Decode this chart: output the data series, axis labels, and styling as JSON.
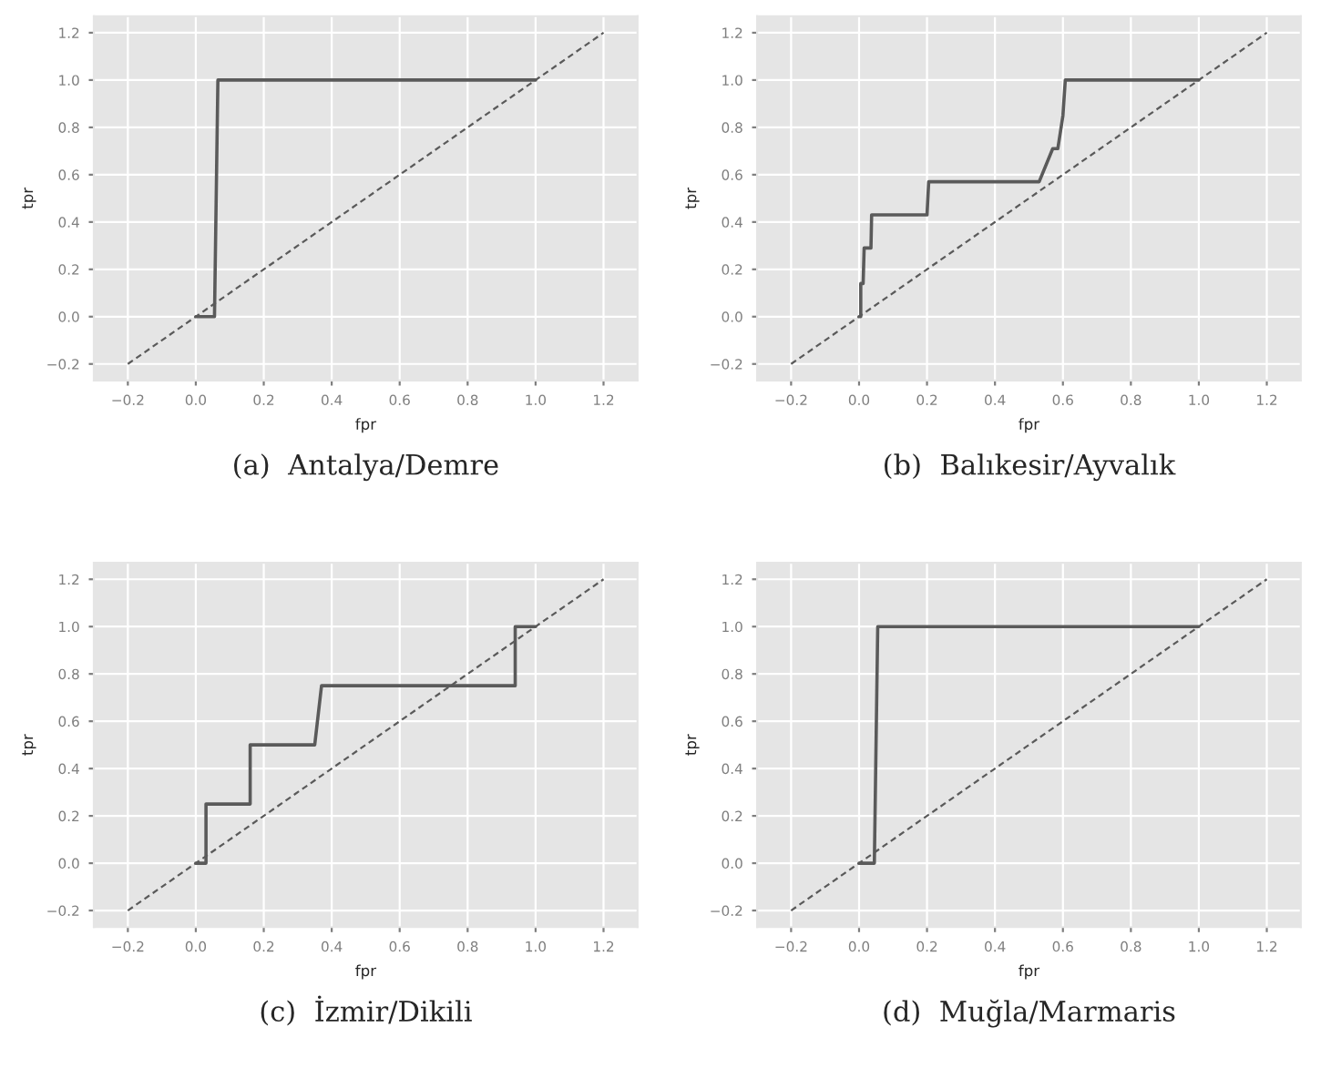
{
  "chart_data": [
    {
      "type": "line",
      "title": "(a)  Antalya/Demre",
      "xlabel": "fpr",
      "ylabel": "tpr",
      "xlim": [
        -0.3,
        1.3
      ],
      "ylim": [
        -0.27,
        1.27
      ],
      "xticks": [
        {
          "value": -0.2,
          "label": "−0.2"
        },
        {
          "value": 0,
          "label": "0.0"
        },
        {
          "value": 0.2,
          "label": "0.2"
        },
        {
          "value": 0.4,
          "label": "0.4"
        },
        {
          "value": 0.6,
          "label": "0.6"
        },
        {
          "value": 0.8,
          "label": "0.8"
        },
        {
          "value": 1,
          "label": "1.0"
        },
        {
          "value": 1.2,
          "label": "1.2"
        }
      ],
      "yticks": [
        {
          "value": -0.2,
          "label": "−0.2"
        },
        {
          "value": 0,
          "label": "0.0"
        },
        {
          "value": 0.2,
          "label": "0.2"
        },
        {
          "value": 0.4,
          "label": "0.4"
        },
        {
          "value": 0.6,
          "label": "0.6"
        },
        {
          "value": 0.8,
          "label": "0.8"
        },
        {
          "value": 1,
          "label": "1.0"
        },
        {
          "value": 1.2,
          "label": "1.2"
        }
      ],
      "grid": true,
      "legend": false,
      "series": [
        {
          "color": "#5a5a5a",
          "line_style": "solid",
          "x": [
            0,
            0.055,
            0.065,
            1.0
          ],
          "values": [
            0,
            0,
            1.0,
            1.0
          ]
        },
        {
          "color": "#5a5a5a",
          "line_style": "dashed",
          "x": [
            -0.2,
            1.2
          ],
          "values": [
            -0.2,
            1.2
          ]
        }
      ]
    },
    {
      "type": "line",
      "title": "(b)  Balıkesir/Ayvalık",
      "xlabel": "fpr",
      "ylabel": "tpr",
      "xlim": [
        -0.3,
        1.3
      ],
      "ylim": [
        -0.27,
        1.27
      ],
      "xticks": [
        {
          "value": -0.2,
          "label": "−0.2"
        },
        {
          "value": 0,
          "label": "0.0"
        },
        {
          "value": 0.2,
          "label": "0.2"
        },
        {
          "value": 0.4,
          "label": "0.4"
        },
        {
          "value": 0.6,
          "label": "0.6"
        },
        {
          "value": 0.8,
          "label": "0.8"
        },
        {
          "value": 1,
          "label": "1.0"
        },
        {
          "value": 1.2,
          "label": "1.2"
        }
      ],
      "yticks": [
        {
          "value": -0.2,
          "label": "−0.2"
        },
        {
          "value": 0,
          "label": "0.0"
        },
        {
          "value": 0.2,
          "label": "0.2"
        },
        {
          "value": 0.4,
          "label": "0.4"
        },
        {
          "value": 0.6,
          "label": "0.6"
        },
        {
          "value": 0.8,
          "label": "0.8"
        },
        {
          "value": 1,
          "label": "1.0"
        },
        {
          "value": 1.2,
          "label": "1.2"
        }
      ],
      "grid": true,
      "legend": false,
      "series": [
        {
          "color": "#5a5a5a",
          "line_style": "solid",
          "x": [
            0,
            0.005,
            0.005,
            0.012,
            0.015,
            0.035,
            0.037,
            0.2,
            0.205,
            0.53,
            0.57,
            0.585,
            0.6,
            0.607,
            1.0
          ],
          "values": [
            0,
            0,
            0.14,
            0.14,
            0.29,
            0.29,
            0.43,
            0.43,
            0.57,
            0.57,
            0.71,
            0.71,
            0.85,
            1.0,
            1.0
          ]
        },
        {
          "color": "#5a5a5a",
          "line_style": "dashed",
          "x": [
            -0.2,
            1.2
          ],
          "values": [
            -0.2,
            1.2
          ]
        }
      ]
    },
    {
      "type": "line",
      "title": "(c)  İzmir/Dikili",
      "xlabel": "fpr",
      "ylabel": "tpr",
      "xlim": [
        -0.3,
        1.3
      ],
      "ylim": [
        -0.27,
        1.27
      ],
      "xticks": [
        {
          "value": -0.2,
          "label": "−0.2"
        },
        {
          "value": 0,
          "label": "0.0"
        },
        {
          "value": 0.2,
          "label": "0.2"
        },
        {
          "value": 0.4,
          "label": "0.4"
        },
        {
          "value": 0.6,
          "label": "0.6"
        },
        {
          "value": 0.8,
          "label": "0.8"
        },
        {
          "value": 1,
          "label": "1.0"
        },
        {
          "value": 1.2,
          "label": "1.2"
        }
      ],
      "yticks": [
        {
          "value": -0.2,
          "label": "−0.2"
        },
        {
          "value": 0,
          "label": "0.0"
        },
        {
          "value": 0.2,
          "label": "0.2"
        },
        {
          "value": 0.4,
          "label": "0.4"
        },
        {
          "value": 0.6,
          "label": "0.6"
        },
        {
          "value": 0.8,
          "label": "0.8"
        },
        {
          "value": 1,
          "label": "1.0"
        },
        {
          "value": 1.2,
          "label": "1.2"
        }
      ],
      "grid": true,
      "legend": false,
      "series": [
        {
          "color": "#5a5a5a",
          "line_style": "solid",
          "x": [
            0,
            0.03,
            0.03,
            0.16,
            0.16,
            0.35,
            0.37,
            0.94,
            0.94,
            1.0
          ],
          "values": [
            0,
            0,
            0.25,
            0.25,
            0.5,
            0.5,
            0.75,
            0.75,
            1.0,
            1.0
          ]
        },
        {
          "color": "#5a5a5a",
          "line_style": "dashed",
          "x": [
            -0.2,
            1.2
          ],
          "values": [
            -0.2,
            1.2
          ]
        }
      ]
    },
    {
      "type": "line",
      "title": "(d)  Muğla/Marmaris",
      "xlabel": "fpr",
      "ylabel": "tpr",
      "xlim": [
        -0.3,
        1.3
      ],
      "ylim": [
        -0.27,
        1.27
      ],
      "xticks": [
        {
          "value": -0.2,
          "label": "−0.2"
        },
        {
          "value": 0,
          "label": "0.0"
        },
        {
          "value": 0.2,
          "label": "0.2"
        },
        {
          "value": 0.4,
          "label": "0.4"
        },
        {
          "value": 0.6,
          "label": "0.6"
        },
        {
          "value": 0.8,
          "label": "0.8"
        },
        {
          "value": 1,
          "label": "1.0"
        },
        {
          "value": 1.2,
          "label": "1.2"
        }
      ],
      "yticks": [
        {
          "value": -0.2,
          "label": "−0.2"
        },
        {
          "value": 0,
          "label": "0.0"
        },
        {
          "value": 0.2,
          "label": "0.2"
        },
        {
          "value": 0.4,
          "label": "0.4"
        },
        {
          "value": 0.6,
          "label": "0.6"
        },
        {
          "value": 0.8,
          "label": "0.8"
        },
        {
          "value": 1,
          "label": "1.0"
        },
        {
          "value": 1.2,
          "label": "1.2"
        }
      ],
      "grid": true,
      "legend": false,
      "series": [
        {
          "color": "#5a5a5a",
          "line_style": "solid",
          "x": [
            0,
            0.045,
            0.055,
            1.0
          ],
          "values": [
            0,
            0,
            1.0,
            1.0
          ]
        },
        {
          "color": "#5a5a5a",
          "line_style": "dashed",
          "x": [
            -0.2,
            1.2
          ],
          "values": [
            -0.2,
            1.2
          ]
        }
      ]
    }
  ]
}
